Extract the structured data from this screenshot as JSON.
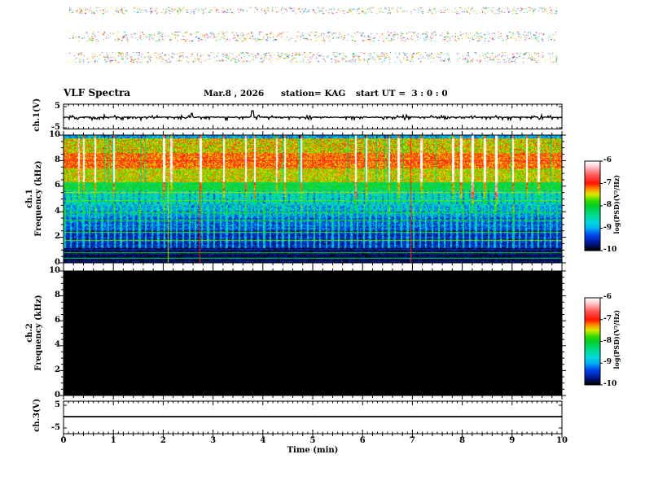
{
  "page": {
    "background": "#ffffff"
  },
  "header": {
    "title": "VLF Spectra",
    "date": "Mar.8 , 2026",
    "station": "station= KAG",
    "start_ut": "start UT =  3 : 0 : 0"
  },
  "axes": {
    "time": {
      "label": "Time (min)",
      "min": 0,
      "max": 10,
      "major_ticks": [
        0,
        1,
        2,
        3,
        4,
        5,
        6,
        7,
        8,
        9,
        10
      ],
      "minor_step": 0.2
    },
    "freq": {
      "label": "Frequency (kHz)",
      "min": 0,
      "max": 10,
      "major_ticks": [
        0,
        2,
        4,
        6,
        8,
        10
      ],
      "minor_step": 0.5
    },
    "volt": {
      "min": -5,
      "max": 5,
      "labeled_ticks": [
        5,
        -5
      ]
    }
  },
  "panels": {
    "ch1_wave": {
      "ylabel": "ch.1(V)"
    },
    "ch1_spec": {
      "ylabel_line1": "ch.1",
      "ylabel_line2": "Frequency (kHz)"
    },
    "ch2_spec": {
      "ylabel_line1": "ch.2",
      "ylabel_line2": "Frequency (kHz)"
    },
    "ch3_wave": {
      "ylabel": "ch.3(V)"
    }
  },
  "colorbar": {
    "label": "log(PSD)(V²/Hz)",
    "ticks": [
      -6,
      -7,
      -8,
      -9,
      -10
    ],
    "stops": [
      [
        0,
        255,
        255,
        255
      ],
      [
        0.06,
        255,
        200,
        205
      ],
      [
        0.15,
        255,
        90,
        90
      ],
      [
        0.25,
        255,
        20,
        0
      ],
      [
        0.31,
        255,
        140,
        0
      ],
      [
        0.37,
        220,
        235,
        0
      ],
      [
        0.44,
        60,
        220,
        0
      ],
      [
        0.5,
        0,
        205,
        40
      ],
      [
        0.6,
        0,
        220,
        140
      ],
      [
        0.69,
        0,
        215,
        225
      ],
      [
        0.75,
        0,
        180,
        240
      ],
      [
        0.83,
        0,
        70,
        240
      ],
      [
        0.92,
        0,
        25,
        150
      ],
      [
        1,
        0,
        0,
        0
      ]
    ]
  },
  "chart_data": [
    {
      "type": "line",
      "panel": "ch1_wave",
      "xlabel": "Time (min)",
      "ylabel": "ch.1(V)",
      "xlim": [
        0,
        10
      ],
      "ylim": [
        -5,
        5
      ],
      "baseline": 0,
      "noise_amp_v": 0.25,
      "spikes": [
        {
          "t": 2.57,
          "v": 1.8
        },
        {
          "t": 3.79,
          "v": 3.0
        }
      ]
    },
    {
      "type": "heatmap",
      "panel": "ch1_spec",
      "xlabel": "Time (min)",
      "ylabel": "ch.1 Frequency (kHz)",
      "xlim": [
        0,
        10
      ],
      "ylim": [
        0,
        10
      ],
      "vmin": -10,
      "vmax": -6,
      "value_scale": "log(PSD)(V²/Hz)",
      "bands": [
        {
          "f": [
            9.8,
            10.0
          ],
          "v": -9.0,
          "jitter": 0.5
        },
        {
          "f": [
            8.6,
            9.8
          ],
          "v": -7.45,
          "jitter": 0.45
        },
        {
          "f": [
            7.4,
            8.6
          ],
          "v": -7.15,
          "jitter": 0.4
        },
        {
          "f": [
            6.3,
            7.4
          ],
          "v": -7.5,
          "jitter": 0.4
        },
        {
          "f": [
            5.6,
            6.3
          ],
          "v": -8.1,
          "jitter": 0.4
        },
        {
          "f": [
            4.6,
            5.6
          ],
          "v": -8.5,
          "jitter": 0.4
        },
        {
          "f": [
            3.6,
            4.6
          ],
          "v": -9.0,
          "jitter": 0.45
        },
        {
          "f": [
            2.6,
            3.6
          ],
          "v": -9.3,
          "jitter": 0.4
        },
        {
          "f": [
            1.15,
            2.6
          ],
          "v": -9.55,
          "jitter": 0.35
        },
        {
          "f": [
            0.0,
            1.15
          ],
          "v": -9.8,
          "jitter": 0.25
        }
      ],
      "h_lines": [
        {
          "f": 8.0,
          "v": -6.9
        },
        {
          "f": 5.5,
          "v": -7.6
        },
        {
          "f": 4.9,
          "v": -7.7
        },
        {
          "f": 3.9,
          "v": -7.9
        },
        {
          "f": 3.35,
          "v": -7.9
        },
        {
          "f": 2.4,
          "v": -7.8
        },
        {
          "f": 1.7,
          "v": -7.7
        },
        {
          "f": 0.8,
          "v": -7.9
        },
        {
          "f": 0.35,
          "v": -8.1
        }
      ],
      "v_lines": [
        {
          "t": 2.09,
          "v": -7.5
        },
        {
          "t": 2.74,
          "v": -7.0
        },
        {
          "t": 6.98,
          "v": -7.0
        }
      ],
      "sferics": {
        "prob": 0.07,
        "width": [
          2,
          3
        ],
        "boost": [
          1.2,
          2.6
        ],
        "white_prob": 0.1,
        "dark_prob": 0.05,
        "full_band_floor_khz": 6.3
      },
      "dash_grid": {
        "period_min": 0.125,
        "duty": 0.3,
        "boost": 0.6,
        "strong_every": 4,
        "strong_boost": 0.35,
        "bright_f_range": [
          1.1,
          4.6
        ],
        "dark_f_range": [
          4.6,
          5.6
        ]
      }
    },
    {
      "type": "heatmap",
      "panel": "ch2_spec",
      "xlabel": "Time (min)",
      "ylabel": "ch.2 Frequency (kHz)",
      "xlim": [
        0,
        10
      ],
      "ylim": [
        0,
        10
      ],
      "vmin": -10,
      "vmax": -6,
      "value_scale": "log(PSD)(V²/Hz)",
      "fill_value": -10,
      "note": "uniform black panel (no signal)"
    },
    {
      "type": "line",
      "panel": "ch3_wave",
      "xlabel": "Time (min)",
      "ylabel": "ch.3(V)",
      "xlim": [
        0,
        10
      ],
      "ylim": [
        -5,
        5
      ],
      "baseline": 0,
      "noise_amp_v": 0,
      "spikes": []
    }
  ],
  "noise_bands": {
    "x_range": [
      85,
      685
    ],
    "bands_y": [
      [
        9,
        17
      ],
      [
        39,
        51
      ],
      [
        64,
        77
      ]
    ],
    "density": 0.1,
    "palette": [
      "#ff3030",
      "#22bb22",
      "#3344ff",
      "#00cccc",
      "#dddd00",
      "#ff9900",
      "#cc44cc"
    ]
  }
}
